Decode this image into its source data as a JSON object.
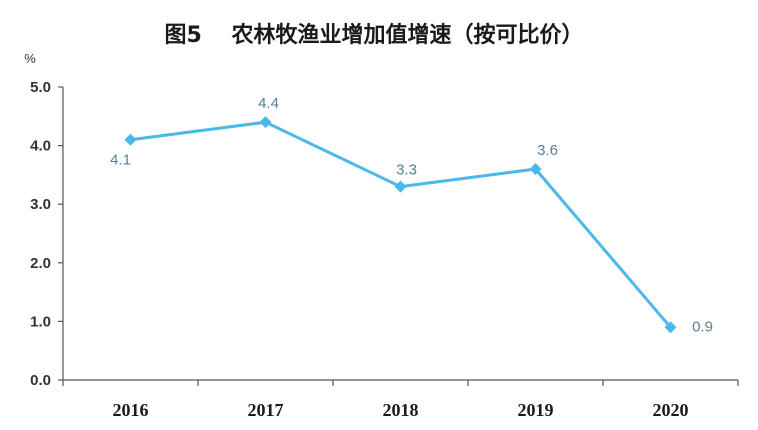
{
  "chart_data": {
    "type": "line",
    "title": "图5　 农林牧渔业增加值增速（按可比价）",
    "yunit": "%",
    "categories": [
      "2016",
      "2017",
      "2018",
      "2019",
      "2020"
    ],
    "values": [
      4.1,
      4.4,
      3.3,
      3.6,
      0.9
    ],
    "data_labels": [
      "4.1",
      "4.4",
      "3.3",
      "3.6",
      "0.9"
    ],
    "ylim": [
      0,
      5
    ],
    "yticks": [
      "0.0",
      "1.0",
      "2.0",
      "3.0",
      "4.0",
      "5.0"
    ],
    "grid": false,
    "marker": "diamond",
    "line_color": "#4ab8e8"
  }
}
